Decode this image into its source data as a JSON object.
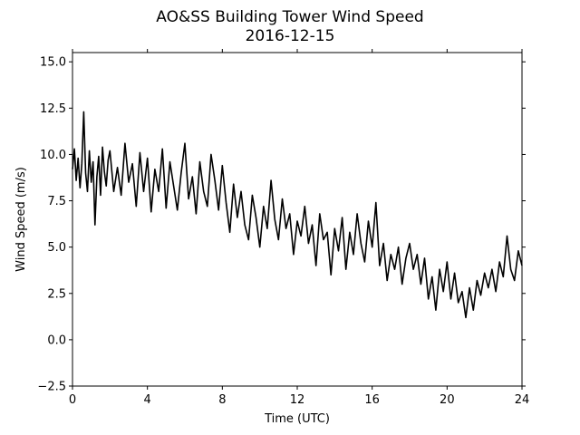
{
  "chart_data": {
    "type": "line",
    "title": "AO&SS Building Tower Wind Speed",
    "subtitle": "2016-12-15",
    "xlabel": "Time (UTC)",
    "ylabel": "Wind Speed (m/s)",
    "xlim": [
      0,
      24
    ],
    "ylim": [
      -2.5,
      15.5
    ],
    "xticks": [
      0,
      4,
      8,
      12,
      16,
      20,
      24
    ],
    "xtick_labels": [
      "0",
      "4",
      "8",
      "12",
      "16",
      "20",
      "24"
    ],
    "yticks": [
      -2.5,
      0.0,
      2.5,
      5.0,
      7.5,
      10.0,
      12.5,
      15.0
    ],
    "ytick_labels": [
      "−2.5",
      "0.0",
      "2.5",
      "5.0",
      "7.5",
      "10.0",
      "12.5",
      "15.0"
    ],
    "grid": false,
    "series": [
      {
        "color": "#000000",
        "x": [
          0,
          0.1,
          0.2,
          0.3,
          0.4,
          0.5,
          0.6,
          0.7,
          0.8,
          0.9,
          1,
          1.1,
          1.2,
          1.3,
          1.4,
          1.5,
          1.6,
          1.7,
          1.8,
          1.9,
          2,
          2.2,
          2.4,
          2.6,
          2.8,
          3,
          3.2,
          3.4,
          3.6,
          3.8,
          4,
          4.2,
          4.4,
          4.6,
          4.8,
          5,
          5.2,
          5.4,
          5.6,
          5.8,
          6,
          6.2,
          6.4,
          6.6,
          6.8,
          7,
          7.2,
          7.4,
          7.6,
          7.8,
          8,
          8.2,
          8.4,
          8.6,
          8.8,
          9,
          9.2,
          9.4,
          9.6,
          9.8,
          10,
          10.2,
          10.4,
          10.6,
          10.8,
          11,
          11.2,
          11.4,
          11.6,
          11.8,
          12,
          12.2,
          12.4,
          12.6,
          12.8,
          13,
          13.2,
          13.4,
          13.6,
          13.8,
          14,
          14.2,
          14.4,
          14.6,
          14.8,
          15,
          15.2,
          15.4,
          15.6,
          15.8,
          16,
          16.2,
          16.4,
          16.6,
          16.8,
          17,
          17.2,
          17.4,
          17.6,
          17.8,
          18,
          18.2,
          18.4,
          18.6,
          18.8,
          19,
          19.2,
          19.4,
          19.6,
          19.8,
          20,
          20.2,
          20.4,
          20.6,
          20.8,
          21,
          21.2,
          21.4,
          21.6,
          21.8,
          22,
          22.2,
          22.4,
          22.6,
          22.8,
          23,
          23.2,
          23.4,
          23.6,
          23.8,
          24
        ],
        "y": [
          9.2,
          10.3,
          8.6,
          9.8,
          8.2,
          9.5,
          12.3,
          9.0,
          8.0,
          10.2,
          8.5,
          9.6,
          6.2,
          8.8,
          9.9,
          7.8,
          10.4,
          9.1,
          8.3,
          9.7,
          10.2,
          8.0,
          9.3,
          7.8,
          10.6,
          8.5,
          9.5,
          7.2,
          10.1,
          8.0,
          9.8,
          6.9,
          9.2,
          8.0,
          10.3,
          7.1,
          9.6,
          8.3,
          7.0,
          9.0,
          10.6,
          7.6,
          8.8,
          6.8,
          9.6,
          8.0,
          7.2,
          10.0,
          8.6,
          7.0,
          9.4,
          7.4,
          5.8,
          8.4,
          6.6,
          8.0,
          6.2,
          5.4,
          7.8,
          6.6,
          5.0,
          7.2,
          6.0,
          8.6,
          6.5,
          5.4,
          7.6,
          6.0,
          6.8,
          4.6,
          6.4,
          5.6,
          7.2,
          5.2,
          6.2,
          4.0,
          6.8,
          5.4,
          5.8,
          3.5,
          6.0,
          4.8,
          6.6,
          3.8,
          5.8,
          4.6,
          6.8,
          5.2,
          4.2,
          6.4,
          5.0,
          7.4,
          4.0,
          5.2,
          3.2,
          4.6,
          3.8,
          5.0,
          3.0,
          4.4,
          5.2,
          3.8,
          4.6,
          3.0,
          4.4,
          2.2,
          3.4,
          1.6,
          3.8,
          2.6,
          4.2,
          2.2,
          3.6,
          2.0,
          2.6,
          1.2,
          2.8,
          1.6,
          3.2,
          2.4,
          3.6,
          2.8,
          3.8,
          2.6,
          4.2,
          3.4,
          5.6,
          3.8,
          3.2,
          4.8,
          4.0
        ]
      }
    ]
  }
}
